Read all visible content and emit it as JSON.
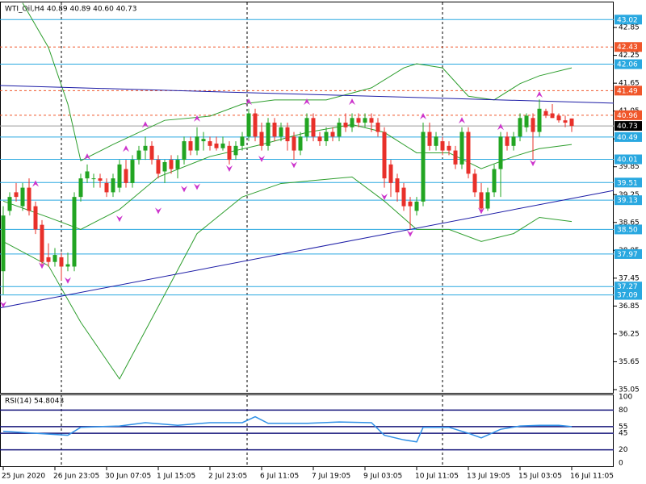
{
  "chart_data": {
    "type": "candlestick",
    "title": "WTI_Oil,H4  40.89 40.89 40.60 40.73",
    "categories": [
      "25 Jun 2020",
      null,
      null,
      null,
      null,
      null,
      null,
      null,
      "26 Jun 23:05",
      null,
      null,
      null,
      null,
      null,
      null,
      null,
      "30 Jun 07:05",
      null,
      null,
      null,
      null,
      null,
      null,
      null,
      "1 Jul 15:05",
      null,
      null,
      null,
      null,
      null,
      null,
      null,
      "2 Jul 23:05",
      null,
      null,
      null,
      null,
      null,
      null,
      null,
      "6 Jul 11:05",
      null,
      null,
      null,
      null,
      null,
      null,
      null,
      "7 Jul 19:05",
      null,
      null,
      null,
      null,
      null,
      null,
      null,
      "9 Jul 03:05",
      null,
      null,
      null,
      null,
      null,
      null,
      null,
      "10 Jul 11:05",
      null,
      null,
      null,
      null,
      null,
      null,
      null,
      "13 Jul 19:05",
      null,
      null,
      null,
      null,
      null,
      null,
      null,
      "15 Jul 03:05",
      null,
      null,
      null,
      null,
      null,
      null,
      null,
      "16 Jul 11:05"
    ],
    "open": [
      37.6,
      38.9,
      39.3,
      39.0,
      39.4,
      39.0,
      38.6,
      37.9,
      37.8,
      37.9,
      37.7,
      37.7,
      39.2,
      39.6,
      39.6,
      39.6,
      39.5,
      39.3,
      39.4,
      39.8,
      39.5,
      40.0,
      40.2,
      40.3,
      40.0,
      39.75,
      40.0,
      39.8,
      40.0,
      40.4,
      40.2,
      40.4,
      40.4,
      40.35,
      40.25,
      40.3,
      40.1,
      40.3,
      40.5,
      41.0,
      40.6,
      40.3,
      40.8,
      40.5,
      40.7,
      40.5,
      40.2,
      40.5,
      40.9,
      40.5,
      40.4,
      40.6,
      40.5,
      40.8,
      40.7,
      40.9,
      40.8,
      40.9,
      40.8,
      40.6,
      39.9,
      39.6,
      39.4,
      39.1,
      38.9,
      39.1,
      40.6,
      40.3,
      40.4,
      40.3,
      40.2,
      39.9,
      40.6,
      39.7,
      39.3,
      38.95,
      39.3,
      39.8,
      40.5,
      40.3,
      40.5,
      40.7,
      40.9,
      40.6,
      41.05,
      41.0,
      40.95,
      40.85,
      40.89
    ],
    "high": [
      39.0,
      39.3,
      39.5,
      39.5,
      39.6,
      39.1,
      38.7,
      38.2,
      38.1,
      38.0,
      38.0,
      39.3,
      39.7,
      39.9,
      39.7,
      39.7,
      39.6,
      39.7,
      40.0,
      40.0,
      40.1,
      40.3,
      40.5,
      40.4,
      40.1,
      40.0,
      40.1,
      40.1,
      40.5,
      40.5,
      40.7,
      40.6,
      40.5,
      40.5,
      40.5,
      40.4,
      40.4,
      40.6,
      41.1,
      41.1,
      40.8,
      40.9,
      40.9,
      40.8,
      40.8,
      40.6,
      40.6,
      41.0,
      41.0,
      40.6,
      40.7,
      40.7,
      40.9,
      41.0,
      41.0,
      41.0,
      41.0,
      41.0,
      40.9,
      40.7,
      40.0,
      39.7,
      39.5,
      39.2,
      39.2,
      40.8,
      40.8,
      40.6,
      40.5,
      40.4,
      40.3,
      40.7,
      40.7,
      39.8,
      39.5,
      39.4,
      39.9,
      40.6,
      40.6,
      40.6,
      41.0,
      41.0,
      41.0,
      41.3,
      41.1,
      41.2,
      41.0,
      40.95,
      40.89
    ],
    "low": [
      37.1,
      38.8,
      39.1,
      38.9,
      38.8,
      38.4,
      37.7,
      37.7,
      37.7,
      37.4,
      37.6,
      37.6,
      39.1,
      39.5,
      39.4,
      39.4,
      39.2,
      39.2,
      39.3,
      39.4,
      39.4,
      39.9,
      40.0,
      39.9,
      39.6,
      39.5,
      39.7,
      39.6,
      39.9,
      40.1,
      40.1,
      40.2,
      40.2,
      40.2,
      40.2,
      39.9,
      40.0,
      40.2,
      40.4,
      40.4,
      40.2,
      40.2,
      40.4,
      40.4,
      40.2,
      40.0,
      40.1,
      40.4,
      40.4,
      40.3,
      40.3,
      40.4,
      40.4,
      40.6,
      40.6,
      40.7,
      40.7,
      40.6,
      40.5,
      39.4,
      39.2,
      39.1,
      38.9,
      38.5,
      38.8,
      39.0,
      40.2,
      40.2,
      40.1,
      40.1,
      39.8,
      39.8,
      39.6,
      39.2,
      38.9,
      38.9,
      39.2,
      39.2,
      40.2,
      40.2,
      40.4,
      40.6,
      40.0,
      40.5,
      40.9,
      40.9,
      40.8,
      40.7,
      40.6
    ],
    "close": [
      38.8,
      39.2,
      39.2,
      39.4,
      38.9,
      38.5,
      37.8,
      37.8,
      37.95,
      37.7,
      37.75,
      39.2,
      39.6,
      39.75,
      39.6,
      39.55,
      39.3,
      39.6,
      39.9,
      39.5,
      40.0,
      40.2,
      40.3,
      40.0,
      39.7,
      39.95,
      39.8,
      40.0,
      40.4,
      40.2,
      40.5,
      40.45,
      40.3,
      40.25,
      40.35,
      40.0,
      40.3,
      40.5,
      41.0,
      40.5,
      40.3,
      40.8,
      40.5,
      40.7,
      40.4,
      40.2,
      40.5,
      40.9,
      40.5,
      40.4,
      40.6,
      40.5,
      40.8,
      40.7,
      40.9,
      40.8,
      40.9,
      40.8,
      40.6,
      39.6,
      39.5,
      39.3,
      39.0,
      39.0,
      39.1,
      40.6,
      40.3,
      40.5,
      40.2,
      40.2,
      39.9,
      40.6,
      39.7,
      39.3,
      38.95,
      39.3,
      39.8,
      40.5,
      40.3,
      40.5,
      40.9,
      40.95,
      40.6,
      41.1,
      40.95,
      40.9,
      40.85,
      40.8,
      40.73
    ],
    "up_color": "#22a522",
    "down_color": "#e8302a",
    "xlim": [
      -0.5,
      94.5
    ],
    "ylim": [
      34.98,
      43.39
    ],
    "yticks": [
      35.05,
      35.65,
      36.25,
      36.85,
      37.45,
      38.05,
      38.65,
      39.25,
      39.85,
      40.45,
      41.05,
      41.65,
      42.25,
      42.85
    ],
    "band_color": "#2e9e2e",
    "bands": [
      {
        "x": [
          3,
          7,
          10,
          12,
          17,
          25,
          32,
          37,
          42,
          50,
          57,
          62,
          64,
          68,
          72,
          76,
          80,
          83,
          88
        ],
        "values": [
          43.38,
          42.42,
          41.2,
          39.98,
          40.33,
          40.85,
          40.94,
          41.2,
          41.29,
          41.29,
          41.55,
          41.98,
          42.07,
          41.98,
          41.37,
          41.29,
          41.64,
          41.81,
          41.98
        ]
      },
      {
        "x": [
          0,
          7,
          12,
          18,
          24,
          32,
          40,
          47,
          54,
          59,
          64,
          69,
          74,
          79,
          83,
          88
        ],
        "values": [
          39.11,
          38.76,
          38.5,
          38.93,
          39.63,
          40.07,
          40.33,
          40.59,
          40.76,
          40.59,
          40.15,
          40.15,
          39.81,
          40.07,
          40.24,
          40.33
        ]
      },
      {
        "x": [
          0,
          7,
          12,
          18,
          24,
          30,
          37,
          43,
          54,
          59,
          64,
          69,
          74,
          79,
          83,
          88
        ],
        "values": [
          38.24,
          37.72,
          36.5,
          35.28,
          36.84,
          38.41,
          39.2,
          39.49,
          39.63,
          39.11,
          38.5,
          38.5,
          38.24,
          38.41,
          38.76,
          38.67
        ]
      }
    ],
    "trend_color": "#1c1ca6",
    "trendlines": [
      {
        "x": [
          -0.5,
          94.5
        ],
        "values": [
          41.6,
          41.22
        ]
      },
      {
        "x": [
          -0.5,
          94.5
        ],
        "values": [
          36.81,
          39.34
        ]
      }
    ],
    "fractal_color": "#cc33cc",
    "fractals_up": {
      "x": [
        5,
        13,
        19,
        22,
        30,
        38,
        47,
        54,
        65,
        71,
        77,
        83
      ],
      "values": [
        39.49,
        40.07,
        40.24,
        40.76,
        40.89,
        41.25,
        41.25,
        41.25,
        40.94,
        40.85,
        40.71,
        41.41
      ]
    },
    "fractals_down": {
      "x": [
        0,
        6,
        10,
        18,
        24,
        28,
        30,
        35,
        40,
        45,
        59,
        63,
        74,
        82
      ],
      "values": [
        36.88,
        37.72,
        37.4,
        38.73,
        38.9,
        39.37,
        39.42,
        39.81,
        40.02,
        39.89,
        39.2,
        38.41,
        38.9,
        39.93
      ]
    },
    "levels": [
      {
        "value": 43.02,
        "color": "#29a8e0",
        "dashed": false
      },
      {
        "value": 42.43,
        "color": "#f0562a",
        "dashed": true
      },
      {
        "value": 42.06,
        "color": "#29a8e0",
        "dashed": false
      },
      {
        "value": 41.49,
        "color": "#f0562a",
        "dashed": true
      },
      {
        "value": 40.96,
        "color": "#f0562a",
        "dashed": true
      },
      {
        "value": 40.73,
        "color": "#000000",
        "dashed": false
      },
      {
        "value": 40.49,
        "color": "#29a8e0",
        "dashed": false
      },
      {
        "value": 40.01,
        "color": "#29a8e0",
        "dashed": false
      },
      {
        "value": 39.51,
        "color": "#29a8e0",
        "dashed": false
      },
      {
        "value": 39.13,
        "color": "#29a8e0",
        "dashed": false
      },
      {
        "value": 38.5,
        "label": "38.50",
        "color": "#29a8e0",
        "dashed": false
      },
      {
        "value": 37.97,
        "color": "#29a8e0",
        "dashed": false
      },
      {
        "value": 37.27,
        "color": "#29a8e0",
        "dashed": false
      },
      {
        "value": 37.09,
        "color": "#29a8e0",
        "dashed": false
      }
    ],
    "rsi": {
      "title": "RSI(14) 54.8043",
      "color": "#2f8fe6",
      "level_color": "#14147a",
      "x": [
        0,
        5,
        10,
        12,
        18,
        22,
        27,
        32,
        37,
        39,
        41,
        47,
        52,
        57,
        59,
        62,
        64,
        65,
        69,
        72,
        74,
        77,
        80,
        83,
        86,
        88
      ],
      "values": [
        48,
        45,
        42,
        54,
        56,
        61,
        57,
        61,
        61,
        70,
        60,
        60,
        62,
        61,
        42,
        35,
        32,
        54,
        54,
        45,
        38,
        51,
        56,
        57,
        57,
        55
      ],
      "ylim": [
        0,
        100
      ],
      "yticks": [
        100,
        80,
        55,
        45,
        20,
        0
      ]
    }
  }
}
